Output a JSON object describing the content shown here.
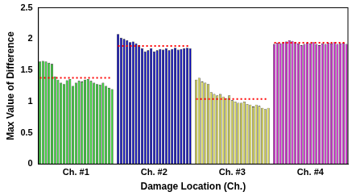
{
  "chart_data": {
    "type": "bar",
    "x_label": "Damage Location (Ch.)",
    "y_label": "Max Value of Difference",
    "categories": [
      null,
      null,
      null,
      null,
      null,
      null,
      null,
      null,
      null,
      null,
      null,
      null,
      "Ch. #1",
      null,
      null,
      null,
      null,
      null,
      null,
      null,
      null,
      null,
      null,
      null,
      null,
      null,
      null,
      null,
      null,
      null,
      null,
      null,
      null,
      null,
      null,
      null,
      null,
      null,
      "Ch. #2",
      null,
      null,
      null,
      null,
      null,
      null,
      null,
      null,
      null,
      null,
      null,
      null,
      null,
      null,
      null,
      null,
      null,
      null,
      null,
      null,
      null,
      null,
      null,
      null,
      null,
      "Ch. #3",
      null,
      null,
      null,
      null,
      null,
      null,
      null,
      null,
      null,
      null,
      null,
      null,
      null,
      null,
      null,
      null,
      null,
      null,
      null,
      null,
      null,
      null,
      null,
      null,
      null,
      "Ch. #4",
      null,
      null,
      null,
      null,
      null,
      null,
      null,
      null,
      null,
      null,
      null,
      null
    ],
    "series": [
      {
        "type": "bar",
        "colors": [
          "#33cc33",
          "#33cc33",
          "#33cc33",
          "#33cc33",
          "#33cc33",
          "#33cc33",
          "#33cc33",
          "#33cc33",
          "#33cc33",
          "#33cc33",
          "#33cc33",
          "#33cc33",
          "#33cc33",
          "#33cc33",
          "#33cc33",
          "#33cc33",
          "#33cc33",
          "#33cc33",
          "#33cc33",
          "#33cc33",
          "#33cc33",
          "#33cc33",
          "#33cc33",
          "#33cc33",
          "#33cc33",
          null,
          "#0a0ab4",
          "#0a0ab4",
          "#0a0ab4",
          "#0a0ab4",
          "#0a0ab4",
          "#0a0ab4",
          "#0a0ab4",
          "#0a0ab4",
          "#0a0ab4",
          "#0a0ab4",
          "#0a0ab4",
          "#0a0ab4",
          "#0a0ab4",
          "#0a0ab4",
          "#0a0ab4",
          "#0a0ab4",
          "#0a0ab4",
          "#0a0ab4",
          "#0a0ab4",
          "#0a0ab4",
          "#0a0ab4",
          "#0a0ab4",
          "#0a0ab4",
          "#0a0ab4",
          "#0a0ab4",
          null,
          "#d9d95a",
          "#d9d95a",
          "#d9d95a",
          "#d9d95a",
          "#d9d95a",
          "#d9d95a",
          "#d9d95a",
          "#d9d95a",
          "#d9d95a",
          "#d9d95a",
          "#d9d95a",
          "#d9d95a",
          "#d9d95a",
          "#d9d95a",
          "#d9d95a",
          "#d9d95a",
          "#d9d95a",
          "#d9d95a",
          "#d9d95a",
          "#d9d95a",
          "#d9d95a",
          "#d9d95a",
          "#d9d95a",
          "#d9d95a",
          "#d9d95a",
          null,
          "#cc2ecc",
          "#cc2ecc",
          "#cc2ecc",
          "#cc2ecc",
          "#cc2ecc",
          "#cc2ecc",
          "#cc2ecc",
          "#cc2ecc",
          "#cc2ecc",
          "#cc2ecc",
          "#cc2ecc",
          "#cc2ecc",
          "#cc2ecc",
          "#cc2ecc",
          "#cc2ecc",
          "#cc2ecc",
          "#cc2ecc",
          "#cc2ecc",
          "#cc2ecc",
          "#cc2ecc",
          "#cc2ecc",
          "#cc2ecc",
          "#cc2ecc",
          "#cc2ecc",
          "#cc2ecc"
        ],
        "values": [
          1.64,
          1.65,
          1.64,
          1.62,
          1.6,
          1.4,
          1.35,
          1.3,
          1.28,
          1.34,
          1.36,
          1.25,
          1.3,
          1.33,
          1.32,
          1.35,
          1.36,
          1.33,
          1.3,
          1.28,
          1.27,
          1.3,
          1.25,
          1.22,
          1.2,
          null,
          2.08,
          2.02,
          2.0,
          1.98,
          1.95,
          1.96,
          1.93,
          1.9,
          1.85,
          1.8,
          1.82,
          1.85,
          1.8,
          1.82,
          1.84,
          1.83,
          1.85,
          1.82,
          1.84,
          1.86,
          1.83,
          1.84,
          1.85,
          1.86,
          1.85,
          null,
          1.35,
          1.38,
          1.32,
          1.3,
          1.28,
          1.15,
          1.12,
          1.1,
          1.12,
          1.08,
          1.05,
          1.1,
          1.02,
          1.0,
          0.98,
          0.98,
          1.0,
          0.96,
          0.95,
          0.92,
          0.95,
          0.93,
          0.9,
          0.88,
          0.9,
          null,
          1.92,
          1.94,
          1.93,
          1.95,
          1.96,
          1.98,
          1.97,
          1.95,
          1.93,
          1.9,
          1.92,
          1.94,
          1.93,
          1.95,
          1.92,
          1.9,
          1.93,
          1.92,
          1.94,
          1.93,
          1.95,
          1.92,
          1.93,
          1.94,
          1.92
        ]
      },
      {
        "type": "line",
        "color": "#ff0000",
        "line_style": "dotted",
        "values": [
          1.38,
          1.38,
          1.38,
          1.38,
          1.38,
          1.38,
          1.38,
          1.38,
          1.38,
          1.38,
          1.38,
          1.38,
          1.38,
          1.38,
          1.38,
          1.38,
          1.38,
          1.38,
          1.38,
          1.38,
          1.38,
          1.38,
          1.38,
          1.38,
          1.38,
          null,
          1.89,
          1.89,
          1.89,
          1.89,
          1.89,
          1.89,
          1.89,
          1.89,
          1.89,
          1.89,
          1.89,
          1.89,
          1.89,
          1.89,
          1.89,
          1.89,
          1.89,
          1.89,
          1.89,
          1.89,
          1.89,
          1.89,
          1.89,
          1.89,
          1.89,
          null,
          1.04,
          1.04,
          1.04,
          1.04,
          1.04,
          1.04,
          1.04,
          1.04,
          1.04,
          1.04,
          1.04,
          1.04,
          1.04,
          1.04,
          1.04,
          1.04,
          1.04,
          1.04,
          1.04,
          1.04,
          1.04,
          1.04,
          1.04,
          1.04,
          1.04,
          null,
          1.94,
          1.94,
          1.94,
          1.94,
          1.94,
          1.94,
          1.94,
          1.94,
          1.94,
          1.94,
          1.94,
          1.94,
          1.94,
          1.94,
          1.94,
          1.94,
          1.94,
          1.94,
          1.94,
          1.94,
          1.94,
          1.94,
          1.94,
          1.94,
          1.94
        ]
      }
    ],
    "ylim": [
      0,
      2.5
    ],
    "yticks": [
      0,
      0.5,
      1,
      1.5,
      2,
      2.5
    ],
    "grid": false
  }
}
